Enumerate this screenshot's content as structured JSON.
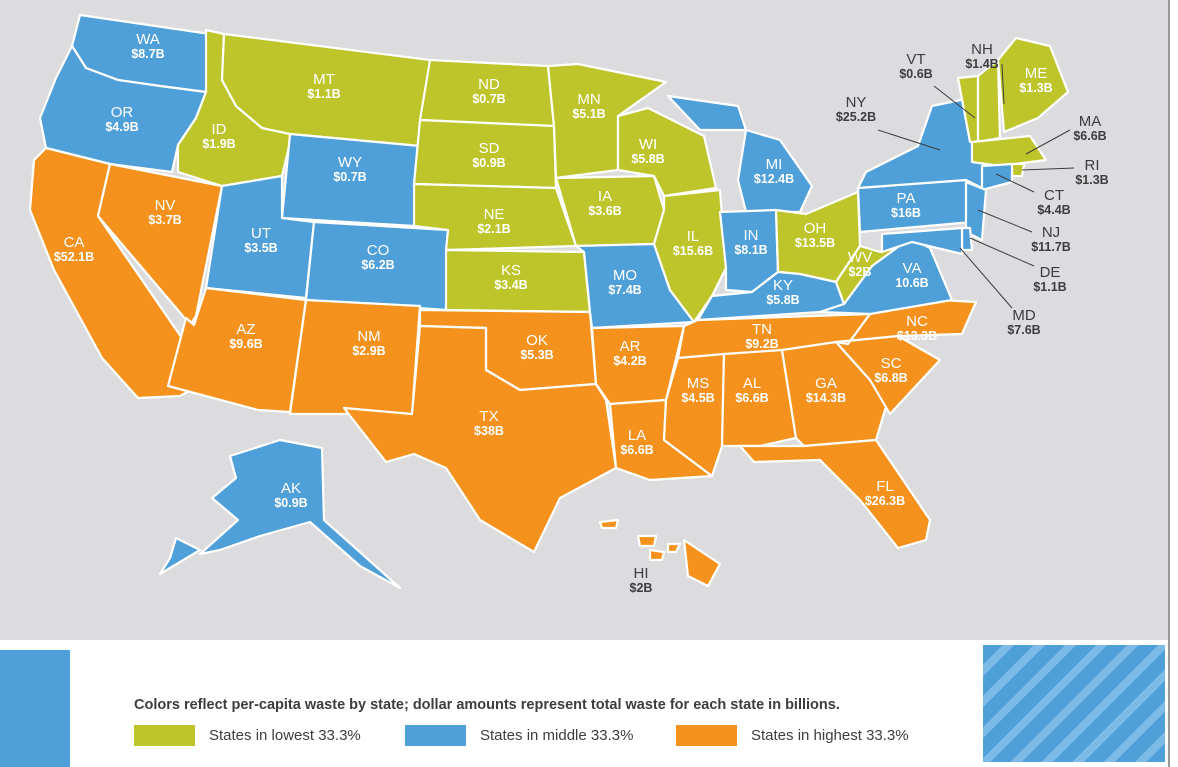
{
  "colors": {
    "low": "#bdc52b",
    "mid": "#4f9fd8",
    "high": "#f5921e",
    "background": "#dcdcde",
    "text": "#3d3d3f"
  },
  "states": [
    {
      "code": "WA",
      "value": "$8.7B",
      "tier": "mid"
    },
    {
      "code": "OR",
      "value": "$4.9B",
      "tier": "mid"
    },
    {
      "code": "CA",
      "value": "$52.1B",
      "tier": "high"
    },
    {
      "code": "NV",
      "value": "$3.7B",
      "tier": "high"
    },
    {
      "code": "ID",
      "value": "$1.9B",
      "tier": "low"
    },
    {
      "code": "MT",
      "value": "$1.1B",
      "tier": "low"
    },
    {
      "code": "WY",
      "value": "$0.7B",
      "tier": "mid"
    },
    {
      "code": "UT",
      "value": "$3.5B",
      "tier": "mid"
    },
    {
      "code": "CO",
      "value": "$6.2B",
      "tier": "mid"
    },
    {
      "code": "AZ",
      "value": "$9.6B",
      "tier": "high"
    },
    {
      "code": "NM",
      "value": "$2.9B",
      "tier": "high"
    },
    {
      "code": "ND",
      "value": "$0.7B",
      "tier": "low"
    },
    {
      "code": "SD",
      "value": "$0.9B",
      "tier": "low"
    },
    {
      "code": "NE",
      "value": "$2.1B",
      "tier": "low"
    },
    {
      "code": "KS",
      "value": "$3.4B",
      "tier": "low"
    },
    {
      "code": "OK",
      "value": "$5.3B",
      "tier": "high"
    },
    {
      "code": "TX",
      "value": "$38B",
      "tier": "high"
    },
    {
      "code": "MN",
      "value": "$5.1B",
      "tier": "low"
    },
    {
      "code": "IA",
      "value": "$3.6B",
      "tier": "low"
    },
    {
      "code": "MO",
      "value": "$7.4B",
      "tier": "mid"
    },
    {
      "code": "AR",
      "value": "$4.2B",
      "tier": "high"
    },
    {
      "code": "LA",
      "value": "$6.6B",
      "tier": "high"
    },
    {
      "code": "WI",
      "value": "$5.8B",
      "tier": "low"
    },
    {
      "code": "IL",
      "value": "$15.6B",
      "tier": "low"
    },
    {
      "code": "MI",
      "value": "$12.4B",
      "tier": "mid"
    },
    {
      "code": "IN",
      "value": "$8.1B",
      "tier": "mid"
    },
    {
      "code": "OH",
      "value": "$13.5B",
      "tier": "low"
    },
    {
      "code": "KY",
      "value": "$5.8B",
      "tier": "mid"
    },
    {
      "code": "TN",
      "value": "$9.2B",
      "tier": "high"
    },
    {
      "code": "MS",
      "value": "$4.5B",
      "tier": "high"
    },
    {
      "code": "AL",
      "value": "$6.6B",
      "tier": "high"
    },
    {
      "code": "GA",
      "value": "$14.3B",
      "tier": "high"
    },
    {
      "code": "FL",
      "value": "$26.3B",
      "tier": "high"
    },
    {
      "code": "SC",
      "value": "$6.8B",
      "tier": "high"
    },
    {
      "code": "NC",
      "value": "$13.3B",
      "tier": "high"
    },
    {
      "code": "VA",
      "value": "10.6B",
      "tier": "mid"
    },
    {
      "code": "WV",
      "value": "$2B",
      "tier": "low"
    },
    {
      "code": "PA",
      "value": "$16B",
      "tier": "mid"
    },
    {
      "code": "NY",
      "value": "$25.2B",
      "tier": "mid"
    },
    {
      "code": "VT",
      "value": "$0.6B",
      "tier": "low"
    },
    {
      "code": "NH",
      "value": "$1.4B",
      "tier": "low"
    },
    {
      "code": "ME",
      "value": "$1.3B",
      "tier": "low"
    },
    {
      "code": "MA",
      "value": "$6.6B",
      "tier": "low"
    },
    {
      "code": "RI",
      "value": "$1.3B",
      "tier": "low"
    },
    {
      "code": "CT",
      "value": "$4.4B",
      "tier": "mid"
    },
    {
      "code": "NJ",
      "value": "$11.7B",
      "tier": "mid"
    },
    {
      "code": "DE",
      "value": "$1.1B",
      "tier": "mid"
    },
    {
      "code": "MD",
      "value": "$7.6B",
      "tier": "mid"
    },
    {
      "code": "AK",
      "value": "$0.9B",
      "tier": "mid"
    },
    {
      "code": "HI",
      "value": "$2B",
      "tier": "high"
    }
  ],
  "legend": {
    "title": "Colors reflect per-capita waste by state; dollar amounts represent total waste for each state in billions.",
    "items": [
      {
        "label": "States in lowest 33.3%",
        "tier": "low"
      },
      {
        "label": "States in middle 33.3%",
        "tier": "mid"
      },
      {
        "label": "States in highest 33.3%",
        "tier": "high"
      }
    ]
  }
}
